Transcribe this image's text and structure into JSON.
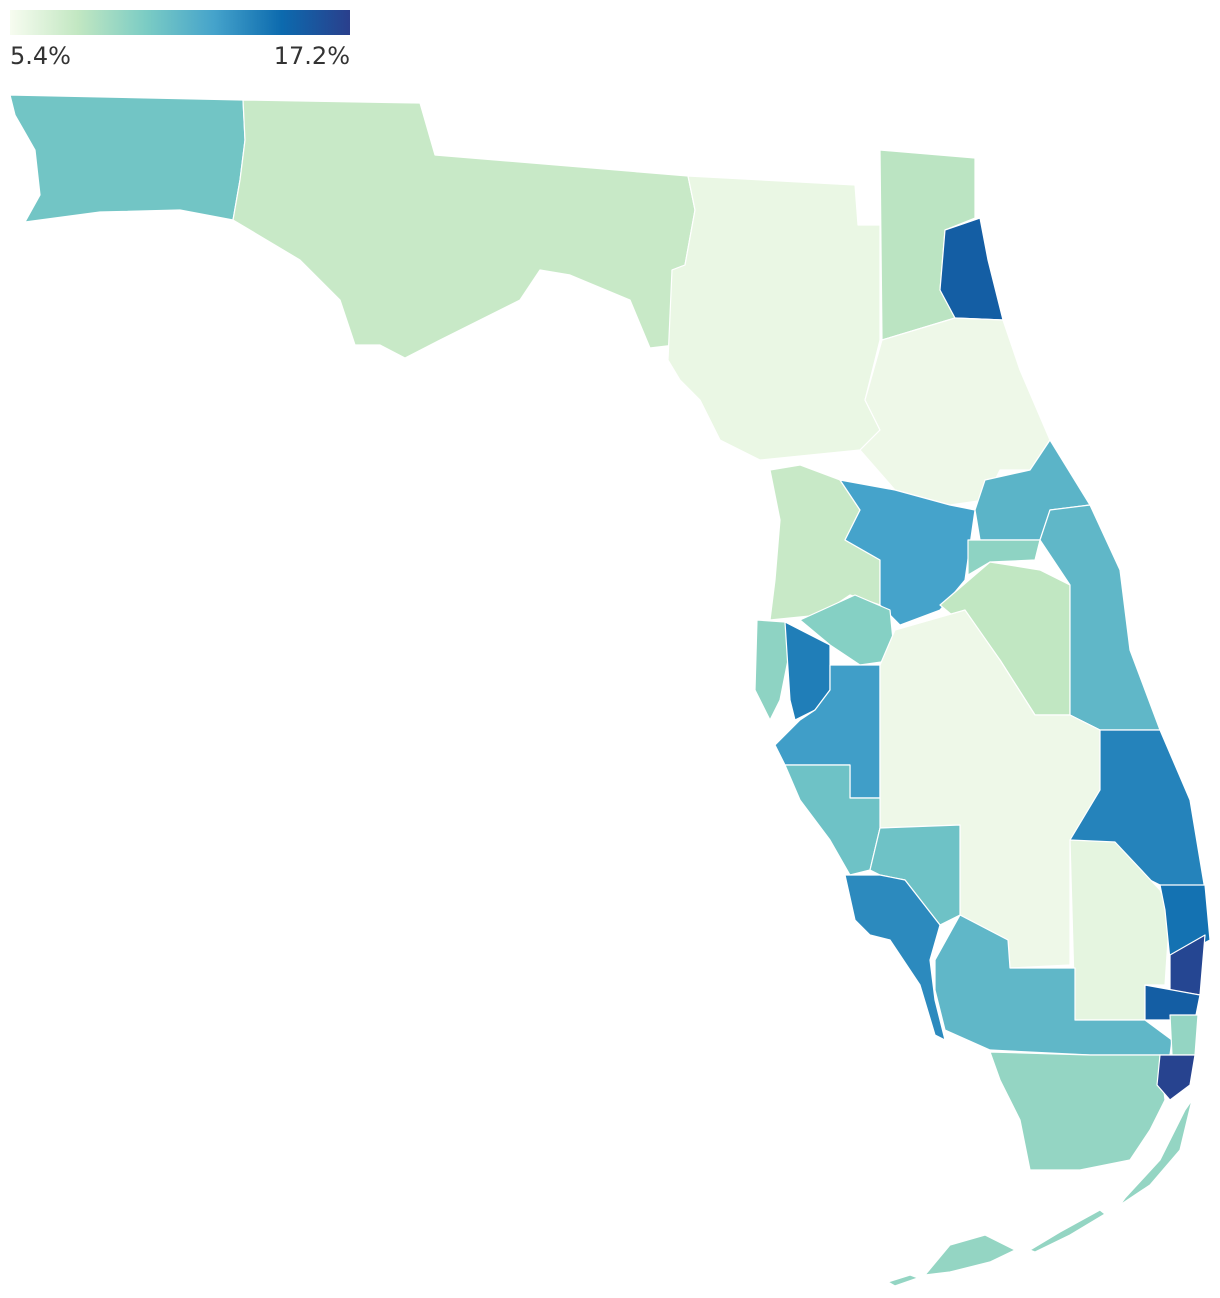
{
  "chart_data": {
    "type": "choropleth",
    "colorscale": [
      "#f7fcf0",
      "#c2e7c2",
      "#7bccc4",
      "#45a3cb",
      "#0c6aae",
      "#2a3f8c"
    ],
    "clim": [
      5.4,
      17.2
    ],
    "cticks": [
      {
        "value": 5.4,
        "label": "5.4%"
      },
      {
        "value": 17.2,
        "label": "17.2%"
      }
    ],
    "values": [
      10.5,
      7.5,
      6.0,
      8.0,
      15.5,
      5.8,
      7.5,
      12.5,
      11.5,
      9.5,
      7.8,
      11.3,
      9.5,
      14.0,
      9.8,
      12.7,
      5.8,
      10.7,
      10.7,
      13.5,
      13.8,
      6.2,
      14.5,
      16.8,
      15.5,
      11.3,
      9.3,
      9.3,
      17.0
    ]
  }
}
